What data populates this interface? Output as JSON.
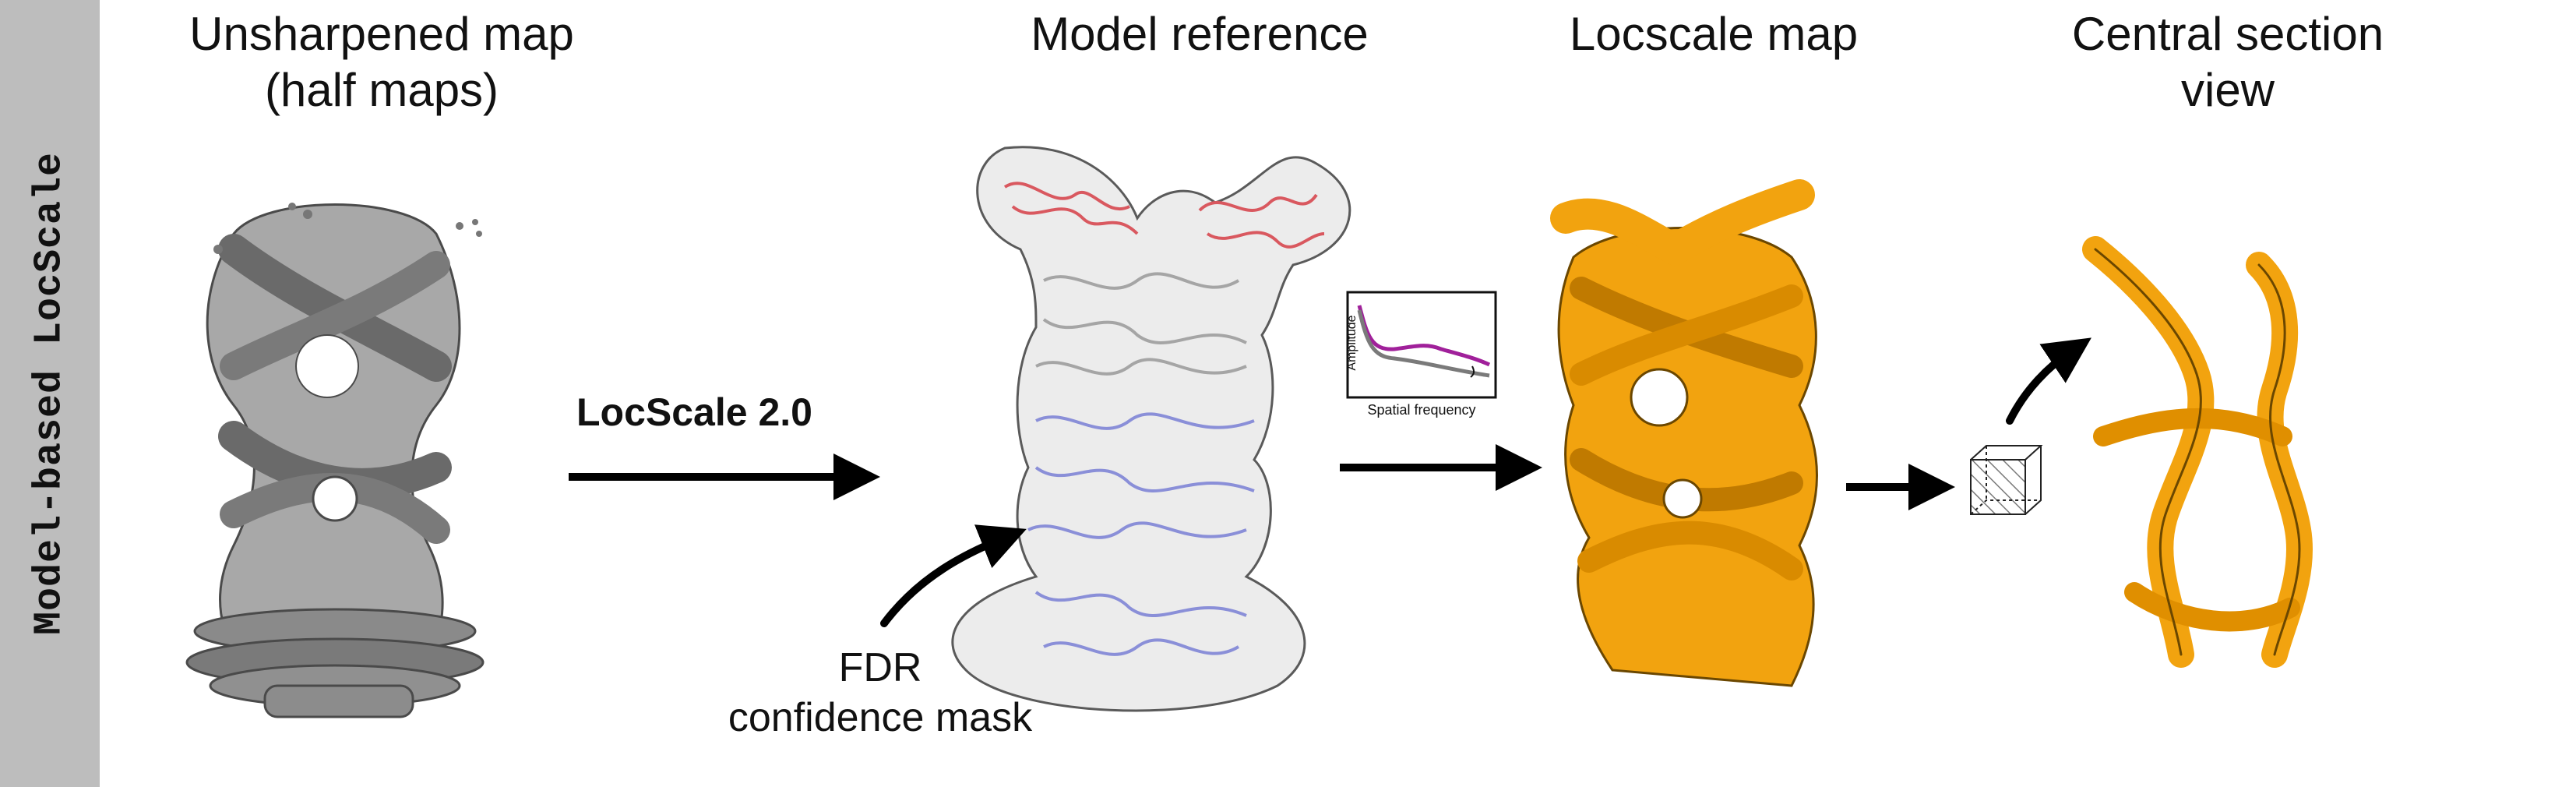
{
  "sidebar": {
    "label": "Model-based LocScale"
  },
  "panels": [
    {
      "title_line1": "Unsharpened map",
      "title_line2": "(half maps)"
    },
    {
      "title_line1": "Model reference",
      "title_line2": ""
    },
    {
      "title_line1": "Locscale map",
      "title_line2": ""
    },
    {
      "title_line1": "Central section",
      "title_line2": "view"
    }
  ],
  "method_label": "LocScale 2.0",
  "mask_label": {
    "line1": "FDR",
    "line2": "confidence mask"
  },
  "inset_plot": {
    "ylabel": "Amplitude",
    "xlabel": "Spatial frequency"
  },
  "colors": {
    "sidebar": "#bdbdbd",
    "unsharpened_map": "#9a9a9a",
    "model_red": "#d9585f",
    "model_blue": "#8a8fd8",
    "locscale_orange": "#f2a30f",
    "curve_purple": "#a0209a",
    "curve_gray": "#7a7a7a"
  }
}
